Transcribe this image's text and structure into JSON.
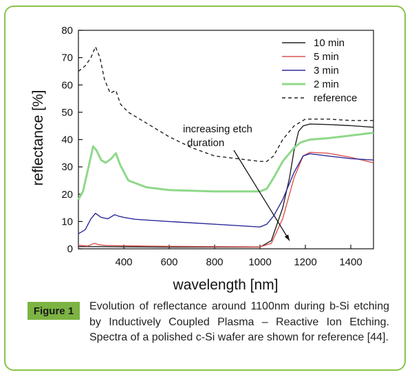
{
  "colors": {
    "frame_border": "#8bc34a",
    "label_bg": "#7cb342",
    "series_10min": "#222222",
    "series_5min": "#d9534f",
    "series_3min": "#2b2b9a",
    "series_2min": "#8fd88a",
    "series_reference": "#222222"
  },
  "figure": {
    "label": "Figure 1",
    "caption": "Evolution of reflectance around 1100nm during b-Si etching by Inductively Coupled Plasma – Reactive Ion Etching. Spectra of a polished c-Si wafer are shown for reference [44]."
  },
  "chart_data": {
    "type": "line",
    "xlabel": "wavelength [nm]",
    "ylabel": "reflectance [%]",
    "xlim": [
      200,
      1500
    ],
    "ylim": [
      0,
      80
    ],
    "xticks": [
      400,
      600,
      800,
      1000,
      1200,
      1400
    ],
    "yticks": [
      0,
      10,
      20,
      30,
      40,
      50,
      60,
      70,
      80
    ],
    "grid": false,
    "legend_position": "top-right",
    "annotation": {
      "text_line1": "increasing etch",
      "text_line2": "duration"
    },
    "series": [
      {
        "name": "10 min",
        "color": "#222222",
        "dash": false,
        "x": [
          200,
          300,
          400,
          600,
          800,
          1000,
          1050,
          1100,
          1130,
          1150,
          1170,
          1190,
          1220,
          1300,
          1400,
          1500
        ],
        "y": [
          0.8,
          0.8,
          0.7,
          0.6,
          0.6,
          0.6,
          3,
          15,
          26,
          36,
          43,
          45,
          45.7,
          45.5,
          45.1,
          44.5
        ]
      },
      {
        "name": "5 min",
        "color": "#d9534f",
        "dash": false,
        "x": [
          200,
          240,
          270,
          290,
          320,
          400,
          600,
          800,
          1000,
          1050,
          1100,
          1150,
          1190,
          1220,
          1300,
          1400,
          1500
        ],
        "y": [
          1.3,
          1.0,
          2.0,
          1.5,
          1.2,
          1.1,
          0.9,
          0.8,
          0.7,
          2,
          11,
          26,
          34,
          35.3,
          35,
          33.5,
          31.5
        ]
      },
      {
        "name": "3 min",
        "color": "#2b2b9a",
        "dash": false,
        "x": [
          200,
          230,
          255,
          275,
          300,
          330,
          360,
          375,
          400,
          450,
          600,
          800,
          1000,
          1030,
          1060,
          1100,
          1150,
          1190,
          1220,
          1300,
          1400,
          1500
        ],
        "y": [
          5.5,
          7,
          11,
          13,
          11.5,
          11,
          12.5,
          12,
          11.5,
          10.8,
          10,
          9,
          8,
          9,
          12,
          18,
          28,
          34,
          34.8,
          34,
          33,
          32.5
        ]
      },
      {
        "name": "2 min",
        "color": "#8fd88a",
        "dash": false,
        "x": [
          200,
          220,
          245,
          265,
          280,
          300,
          320,
          345,
          365,
          385,
          420,
          500,
          600,
          800,
          1000,
          1030,
          1060,
          1100,
          1150,
          1180,
          1220,
          1300,
          1400,
          1500
        ],
        "y": [
          18,
          21,
          30,
          37.5,
          36,
          32.5,
          31.5,
          33,
          35,
          30.5,
          25,
          22.5,
          21.5,
          21,
          21,
          22,
          26,
          32,
          37,
          39,
          40,
          40.5,
          41.5,
          42.5
        ]
      },
      {
        "name": "reference",
        "color": "#222222",
        "dash": true,
        "x": [
          200,
          230,
          255,
          275,
          295,
          315,
          340,
          365,
          385,
          420,
          500,
          600,
          700,
          800,
          900,
          1000,
          1030,
          1060,
          1100,
          1150,
          1200,
          1300,
          1400,
          1500
        ],
        "y": [
          65,
          67,
          70,
          74,
          70,
          62,
          57,
          58,
          53,
          50,
          46,
          41,
          37,
          34,
          33,
          32,
          32,
          34,
          40,
          45,
          47.5,
          47.5,
          47,
          47
        ]
      }
    ]
  }
}
